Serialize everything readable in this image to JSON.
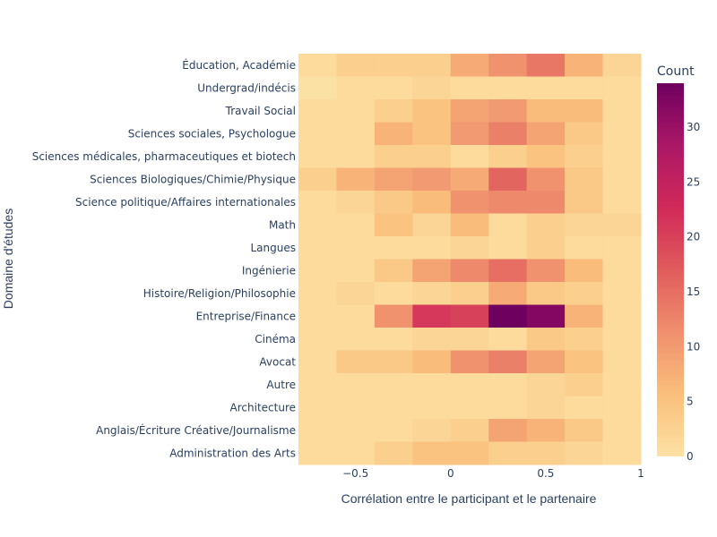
{
  "chart_data": {
    "type": "heatmap",
    "title": "",
    "xlabel": "Corrélation entre le participant et le partenaire",
    "ylabel": "Domaine d'études",
    "x_bins": [
      -0.8,
      -0.6,
      -0.4,
      -0.2,
      0.0,
      0.2,
      0.4,
      0.6,
      0.8,
      1.0
    ],
    "x_tick_values": [
      -0.5,
      0,
      0.5,
      1
    ],
    "x_tick_labels": [
      "−0.5",
      "0",
      "0.5",
      "1"
    ],
    "colorbar": {
      "title": "Count",
      "min": 0,
      "max": 34,
      "ticks": [
        0,
        5,
        10,
        15,
        20,
        25,
        30
      ],
      "colorscale": [
        "#fce1a4",
        "#fabf7b",
        "#f08f6e",
        "#e05c5c",
        "#d12959",
        "#ab1866",
        "#6e005f"
      ]
    },
    "categories": [
      "Éducation, Académie",
      "Undergrad/indécis",
      "Travail Social",
      "Sciences sociales, Psychologue",
      "Sciences médicales, pharmaceutiques et biotech",
      "Sciences Biologiques/Chimie/Physique",
      "Science politique/Affaires internationales",
      "Math",
      "Langues",
      "Ingénierie",
      "Histoire/Religion/Philosophie",
      "Entreprise/Finance",
      "Cinéma",
      "Avocat",
      "Autre",
      "Architecture",
      "Anglais/Écriture Créative/Journalisme",
      "Administration des Arts"
    ],
    "z": [
      [
        1,
        3,
        3,
        3,
        8,
        11,
        14,
        7,
        2
      ],
      [
        0,
        1,
        1,
        2,
        1,
        1,
        1,
        1,
        1
      ],
      [
        1,
        1,
        3,
        5,
        9,
        10,
        6,
        6,
        1
      ],
      [
        1,
        1,
        7,
        5,
        10,
        13,
        9,
        4,
        1
      ],
      [
        1,
        1,
        3,
        3,
        1,
        3,
        5,
        3,
        1
      ],
      [
        3,
        7,
        9,
        10,
        8,
        16,
        11,
        4,
        1
      ],
      [
        1,
        2,
        4,
        6,
        11,
        12,
        12,
        4,
        1
      ],
      [
        1,
        1,
        5,
        2,
        6,
        1,
        3,
        2,
        2
      ],
      [
        1,
        1,
        1,
        1,
        2,
        1,
        3,
        1,
        1
      ],
      [
        1,
        1,
        4,
        9,
        12,
        15,
        11,
        6,
        1
      ],
      [
        1,
        2,
        1,
        2,
        3,
        8,
        4,
        3,
        1
      ],
      [
        1,
        1,
        11,
        21,
        20,
        34,
        32,
        7,
        1
      ],
      [
        1,
        1,
        1,
        2,
        2,
        1,
        4,
        3,
        1
      ],
      [
        1,
        4,
        4,
        6,
        11,
        13,
        9,
        5,
        1
      ],
      [
        1,
        1,
        1,
        1,
        1,
        1,
        2,
        3,
        1
      ],
      [
        1,
        1,
        1,
        1,
        1,
        1,
        2,
        1,
        1
      ],
      [
        1,
        1,
        1,
        2,
        3,
        9,
        7,
        4,
        1
      ],
      [
        1,
        1,
        3,
        5,
        5,
        3,
        3,
        2,
        1
      ]
    ]
  }
}
